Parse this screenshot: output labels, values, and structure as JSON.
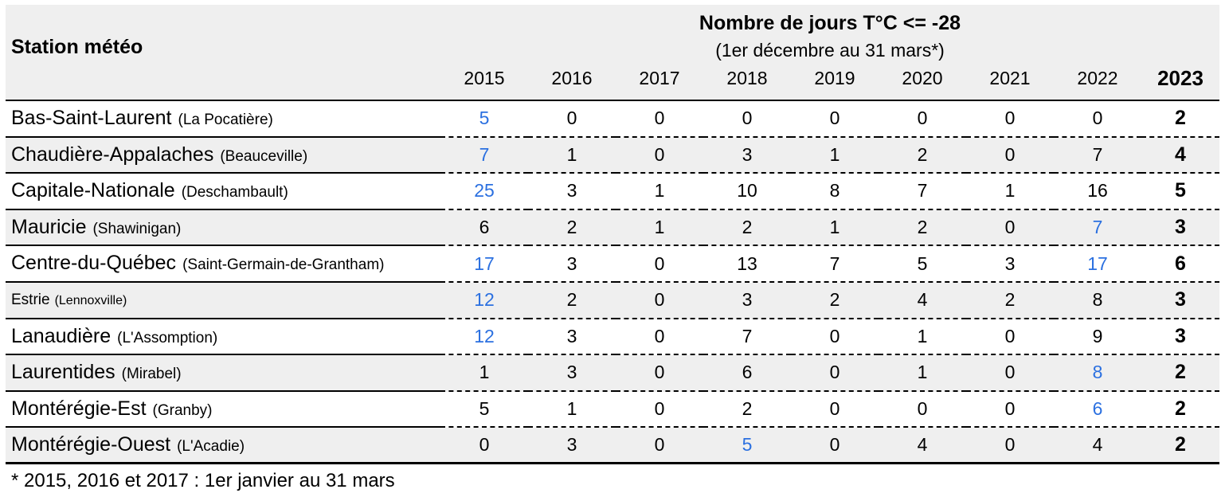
{
  "colors": {
    "highlight_blue": "#2b70e0",
    "stripe_gray": "#efefef"
  },
  "header": {
    "station_label": "Station météo",
    "title": "Nombre de jours T°C <= -28",
    "subtitle": "(1er décembre au 31 mars*)",
    "years": [
      "2015",
      "2016",
      "2017",
      "2018",
      "2019",
      "2020",
      "2021",
      "2022",
      "2023"
    ]
  },
  "rows": [
    {
      "region": "Bas-Saint-Laurent",
      "station": "(La Pocatière)",
      "small_label": false,
      "values": [
        5,
        0,
        0,
        0,
        0,
        0,
        0,
        0,
        2
      ],
      "highlight": [
        0
      ]
    },
    {
      "region": "Chaudière-Appalaches",
      "station": "(Beauceville)",
      "small_label": false,
      "values": [
        7,
        1,
        0,
        3,
        1,
        2,
        0,
        7,
        4
      ],
      "highlight": [
        0
      ]
    },
    {
      "region": "Capitale-Nationale",
      "station": "(Deschambault)",
      "small_label": false,
      "values": [
        25,
        3,
        1,
        10,
        8,
        7,
        1,
        16,
        5
      ],
      "highlight": [
        0
      ]
    },
    {
      "region": "Mauricie",
      "station": "(Shawinigan)",
      "small_label": false,
      "values": [
        6,
        2,
        1,
        2,
        1,
        2,
        0,
        7,
        3
      ],
      "highlight": [
        7
      ]
    },
    {
      "region": "Centre-du-Québec",
      "station": "(Saint-Germain-de-Grantham)",
      "small_label": false,
      "values": [
        17,
        3,
        0,
        13,
        7,
        5,
        3,
        17,
        6
      ],
      "highlight": [
        0,
        7
      ]
    },
    {
      "region": "Estrie",
      "station": "(Lennoxville)",
      "small_label": true,
      "values": [
        12,
        2,
        0,
        3,
        2,
        4,
        2,
        8,
        3
      ],
      "highlight": [
        0
      ]
    },
    {
      "region": "Lanaudière",
      "station": "(L'Assomption)",
      "small_label": false,
      "values": [
        12,
        3,
        0,
        7,
        0,
        1,
        0,
        9,
        3
      ],
      "highlight": [
        0
      ]
    },
    {
      "region": "Laurentides",
      "station": "(Mirabel)",
      "small_label": false,
      "values": [
        1,
        3,
        0,
        6,
        0,
        1,
        0,
        8,
        2
      ],
      "highlight": [
        7
      ]
    },
    {
      "region": "Montérégie-Est",
      "station": "(Granby)",
      "small_label": false,
      "values": [
        5,
        1,
        0,
        2,
        0,
        0,
        0,
        6,
        2
      ],
      "highlight": [
        7
      ]
    },
    {
      "region": "Montérégie-Ouest",
      "station": "(L'Acadie)",
      "small_label": false,
      "values": [
        0,
        3,
        0,
        5,
        0,
        4,
        0,
        4,
        2
      ],
      "highlight": [
        3
      ]
    }
  ],
  "footnote": "* 2015, 2016 et 2017 : 1er janvier au 31 mars",
  "chart_data": {
    "type": "table",
    "title": "Nombre de jours T°C <= -28",
    "subtitle": "(1er décembre au 31 mars*)",
    "columns": [
      "Station météo",
      "2015",
      "2016",
      "2017",
      "2018",
      "2019",
      "2020",
      "2021",
      "2022",
      "2023"
    ],
    "rows": [
      [
        "Bas-Saint-Laurent (La Pocatière)",
        5,
        0,
        0,
        0,
        0,
        0,
        0,
        0,
        2
      ],
      [
        "Chaudière-Appalaches (Beauceville)",
        7,
        1,
        0,
        3,
        1,
        2,
        0,
        7,
        4
      ],
      [
        "Capitale-Nationale (Deschambault)",
        25,
        3,
        1,
        10,
        8,
        7,
        1,
        16,
        5
      ],
      [
        "Mauricie (Shawinigan)",
        6,
        2,
        1,
        2,
        1,
        2,
        0,
        7,
        3
      ],
      [
        "Centre-du-Québec (Saint-Germain-de-Grantham)",
        17,
        3,
        0,
        13,
        7,
        5,
        3,
        17,
        6
      ],
      [
        "Estrie (Lennoxville)",
        12,
        2,
        0,
        3,
        2,
        4,
        2,
        8,
        3
      ],
      [
        "Lanaudière (L'Assomption)",
        12,
        3,
        0,
        7,
        0,
        1,
        0,
        9,
        3
      ],
      [
        "Laurentides (Mirabel)",
        1,
        3,
        0,
        6,
        0,
        1,
        0,
        8,
        2
      ],
      [
        "Montérégie-Est (Granby)",
        5,
        1,
        0,
        2,
        0,
        0,
        0,
        6,
        2
      ],
      [
        "Montérégie-Ouest (L'Acadie)",
        0,
        3,
        0,
        5,
        0,
        4,
        0,
        4,
        2
      ]
    ],
    "highlighted_cells_blue": [
      {
        "row": "Bas-Saint-Laurent",
        "year": "2015",
        "value": 5
      },
      {
        "row": "Chaudière-Appalaches",
        "year": "2015",
        "value": 7
      },
      {
        "row": "Capitale-Nationale",
        "year": "2015",
        "value": 25
      },
      {
        "row": "Mauricie",
        "year": "2022",
        "value": 7
      },
      {
        "row": "Centre-du-Québec",
        "year": "2015",
        "value": 17
      },
      {
        "row": "Centre-du-Québec",
        "year": "2022",
        "value": 17
      },
      {
        "row": "Estrie",
        "year": "2015",
        "value": 12
      },
      {
        "row": "Lanaudière",
        "year": "2015",
        "value": 12
      },
      {
        "row": "Laurentides",
        "year": "2022",
        "value": 8
      },
      {
        "row": "Montérégie-Est",
        "year": "2022",
        "value": 6
      },
      {
        "row": "Montérégie-Ouest",
        "year": "2018",
        "value": 5
      }
    ],
    "footnote": "* 2015, 2016 et 2017 : 1er janvier au 31 mars",
    "legend_position": "none",
    "grid": "row-separators-only"
  }
}
